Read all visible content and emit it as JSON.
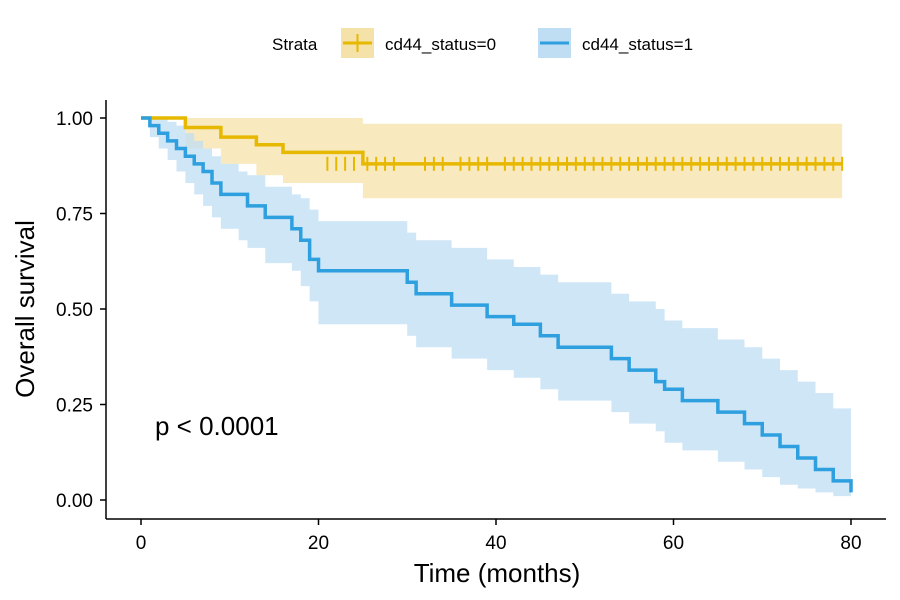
{
  "chart_data": {
    "type": "line",
    "subtype": "kaplan-meier",
    "title": "",
    "xlabel": "Time (months)",
    "ylabel": "Overall survival",
    "xlim": [
      0,
      80
    ],
    "ylim": [
      0,
      1
    ],
    "xticks": [
      0,
      20,
      40,
      60,
      80
    ],
    "xtick_labels": [
      "0",
      "20",
      "40",
      "60",
      "80"
    ],
    "yticks": [
      0,
      0.25,
      0.5,
      0.75,
      1.0
    ],
    "ytick_labels": [
      "0.00",
      "0.25",
      "0.50",
      "0.75",
      "1.00"
    ],
    "grid": false,
    "legend_position": "top",
    "legend_title": "Strata",
    "annotation": "p < 0.0001",
    "series": [
      {
        "name": "cd44_status=0",
        "color": "#E7B800",
        "band_color": "#F5E2A8",
        "step_x": [
          0,
          5,
          9,
          13,
          16,
          25,
          79
        ],
        "step_y": [
          1.0,
          0.975,
          0.95,
          0.93,
          0.91,
          0.88,
          0.88
        ],
        "band_x": [
          0,
          5,
          9,
          13,
          16,
          25,
          79
        ],
        "band_lower": [
          1.0,
          0.92,
          0.88,
          0.85,
          0.83,
          0.79,
          0.79
        ],
        "band_upper": [
          1.0,
          1.0,
          1.0,
          1.0,
          1.0,
          0.985,
          0.985
        ],
        "censor_x": [
          21,
          22,
          23,
          24,
          25.5,
          26.5,
          27.5,
          28.5,
          32,
          33,
          34,
          36,
          37,
          38,
          39,
          41,
          42,
          43,
          44,
          45,
          46,
          47,
          48,
          49,
          50,
          51,
          52,
          53,
          54,
          55,
          56,
          57,
          58,
          59,
          60,
          61,
          62,
          63,
          64,
          65,
          66,
          67,
          68,
          69,
          70,
          71,
          72,
          73,
          74,
          75,
          76,
          77,
          78,
          79
        ],
        "censor_y": 0.88
      },
      {
        "name": "cd44_status=1",
        "color": "#2E9FDF",
        "band_color": "#BFDDF3",
        "step_x": [
          0,
          1,
          2,
          3,
          4,
          5,
          6,
          7,
          8,
          9,
          11,
          12,
          14,
          17,
          18,
          19,
          20,
          30,
          31,
          35,
          39,
          42,
          45,
          47,
          53,
          55,
          58,
          59,
          61,
          65,
          68,
          70,
          72,
          74,
          76,
          78,
          80
        ],
        "step_y": [
          1.0,
          0.98,
          0.96,
          0.94,
          0.92,
          0.9,
          0.88,
          0.86,
          0.83,
          0.8,
          0.8,
          0.77,
          0.74,
          0.71,
          0.68,
          0.63,
          0.6,
          0.57,
          0.54,
          0.51,
          0.48,
          0.46,
          0.43,
          0.4,
          0.37,
          0.34,
          0.31,
          0.29,
          0.26,
          0.23,
          0.2,
          0.17,
          0.14,
          0.11,
          0.08,
          0.05,
          0.02
        ],
        "band_x": [
          0,
          1,
          2,
          3,
          4,
          5,
          6,
          7,
          8,
          9,
          11,
          12,
          14,
          17,
          18,
          19,
          20,
          30,
          31,
          35,
          39,
          42,
          45,
          47,
          53,
          55,
          58,
          59,
          61,
          65,
          68,
          70,
          72,
          74,
          76,
          78,
          80
        ],
        "band_lower": [
          1.0,
          0.95,
          0.92,
          0.89,
          0.86,
          0.83,
          0.8,
          0.77,
          0.74,
          0.71,
          0.68,
          0.66,
          0.62,
          0.6,
          0.56,
          0.52,
          0.46,
          0.43,
          0.4,
          0.37,
          0.34,
          0.32,
          0.29,
          0.26,
          0.23,
          0.2,
          0.18,
          0.15,
          0.13,
          0.1,
          0.08,
          0.06,
          0.04,
          0.03,
          0.02,
          0.01,
          0.0
        ],
        "band_upper": [
          1.0,
          1.0,
          1.0,
          0.99,
          0.98,
          0.96,
          0.94,
          0.92,
          0.9,
          0.88,
          0.86,
          0.85,
          0.82,
          0.8,
          0.79,
          0.76,
          0.73,
          0.7,
          0.68,
          0.66,
          0.63,
          0.61,
          0.59,
          0.57,
          0.54,
          0.52,
          0.5,
          0.47,
          0.45,
          0.42,
          0.4,
          0.37,
          0.34,
          0.31,
          0.28,
          0.24,
          0.2
        ]
      }
    ]
  }
}
